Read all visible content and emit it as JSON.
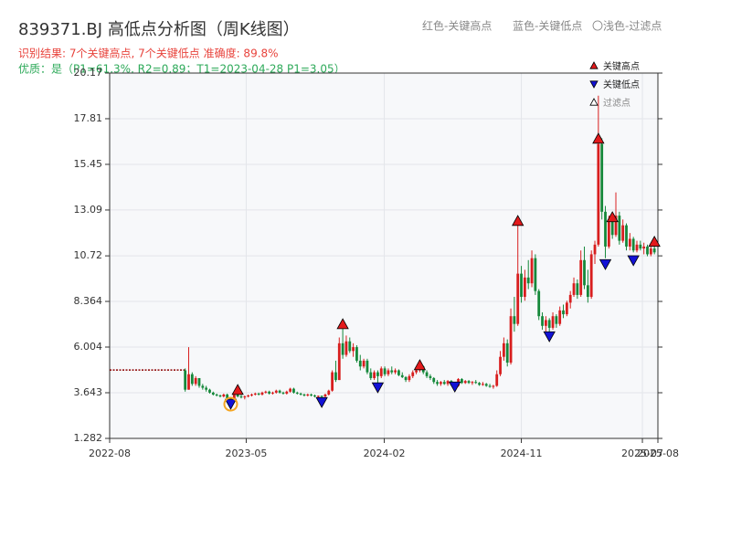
{
  "chart_data": {
    "type": "candlestick",
    "title": "839371.BJ 高低点分析图（周K线图）",
    "header_notes": [
      "红色-关键高点",
      "蓝色-关键低点",
      "〇浅色-过滤点"
    ],
    "result_text": "识别结果: 7个关键高点, 7个关键低点  准确度: 89.8%",
    "quality_text": "优质：是（P1=61.3%, R2=0.89；T1=2023-04-28 P1=3.05）",
    "up_color": "#d81e1e",
    "down_color": "#15883a",
    "xlim": [
      "2022-08",
      "2025-08"
    ],
    "xticks": [
      "2022-08",
      "2023-05",
      "2024-02",
      "2024-11",
      "2025-07",
      "2025-08"
    ],
    "ylim": [
      1.282,
      20.17
    ],
    "yticks": [
      1.282,
      3.643,
      6.004,
      8.364,
      10.72,
      13.09,
      15.45,
      17.81,
      20.17
    ],
    "grid": true,
    "legend_position": "upper right",
    "reference_line": {
      "x": [
        "2022-08-01",
        "2022-12-30"
      ],
      "value": 4.82,
      "color": "#8b0000"
    },
    "candles": [
      [
        "2022-12-30",
        4.8,
        4.9,
        3.7,
        3.8
      ],
      [
        "2023-01-06",
        3.8,
        6.0,
        3.8,
        4.6
      ],
      [
        "2023-01-13",
        4.6,
        4.7,
        4.0,
        4.1
      ],
      [
        "2023-01-20",
        4.1,
        4.5,
        4.0,
        4.4
      ],
      [
        "2023-01-27",
        4.4,
        4.4,
        3.9,
        4.0
      ],
      [
        "2023-02-03",
        4.0,
        4.1,
        3.8,
        3.9
      ],
      [
        "2023-02-10",
        3.9,
        4.0,
        3.7,
        3.8
      ],
      [
        "2023-02-17",
        3.8,
        3.85,
        3.6,
        3.65
      ],
      [
        "2023-02-24",
        3.65,
        3.7,
        3.5,
        3.55
      ],
      [
        "2023-03-03",
        3.55,
        3.6,
        3.45,
        3.5
      ],
      [
        "2023-03-10",
        3.5,
        3.55,
        3.4,
        3.45
      ],
      [
        "2023-03-17",
        3.45,
        3.6,
        3.4,
        3.55
      ],
      [
        "2023-03-24",
        3.55,
        3.6,
        3.3,
        3.35
      ],
      [
        "2023-03-31",
        3.35,
        3.4,
        3.05,
        3.2
      ],
      [
        "2023-04-07",
        3.2,
        3.6,
        3.15,
        3.55
      ],
      [
        "2023-04-14",
        3.55,
        3.7,
        3.4,
        3.45
      ],
      [
        "2023-04-21",
        3.45,
        3.55,
        3.35,
        3.4
      ],
      [
        "2023-04-28",
        3.4,
        3.5,
        3.3,
        3.45
      ],
      [
        "2023-05-05",
        3.45,
        3.55,
        3.4,
        3.5
      ],
      [
        "2023-05-12",
        3.5,
        3.6,
        3.45,
        3.55
      ],
      [
        "2023-05-19",
        3.55,
        3.65,
        3.5,
        3.6
      ],
      [
        "2023-05-26",
        3.6,
        3.65,
        3.5,
        3.55
      ],
      [
        "2023-06-02",
        3.55,
        3.7,
        3.5,
        3.65
      ],
      [
        "2023-06-09",
        3.65,
        3.75,
        3.6,
        3.7
      ],
      [
        "2023-06-16",
        3.7,
        3.75,
        3.55,
        3.6
      ],
      [
        "2023-06-23",
        3.6,
        3.7,
        3.55,
        3.65
      ],
      [
        "2023-06-30",
        3.65,
        3.8,
        3.6,
        3.75
      ],
      [
        "2023-07-07",
        3.75,
        3.8,
        3.6,
        3.65
      ],
      [
        "2023-07-14",
        3.65,
        3.7,
        3.55,
        3.6
      ],
      [
        "2023-07-21",
        3.6,
        3.75,
        3.55,
        3.7
      ],
      [
        "2023-07-28",
        3.7,
        3.9,
        3.65,
        3.85
      ],
      [
        "2023-08-04",
        3.85,
        3.9,
        3.6,
        3.65
      ],
      [
        "2023-08-11",
        3.65,
        3.7,
        3.55,
        3.6
      ],
      [
        "2023-08-18",
        3.6,
        3.65,
        3.5,
        3.55
      ],
      [
        "2023-08-25",
        3.55,
        3.6,
        3.45,
        3.5
      ],
      [
        "2023-09-01",
        3.5,
        3.6,
        3.45,
        3.55
      ],
      [
        "2023-09-08",
        3.55,
        3.6,
        3.45,
        3.5
      ],
      [
        "2023-09-15",
        3.5,
        3.55,
        3.4,
        3.45
      ],
      [
        "2023-09-22",
        3.45,
        3.5,
        3.4,
        3.48
      ],
      [
        "2023-09-29",
        3.48,
        3.5,
        3.3,
        3.45
      ],
      [
        "2023-10-06",
        3.45,
        3.6,
        3.4,
        3.55
      ],
      [
        "2023-10-13",
        3.55,
        3.8,
        3.5,
        3.75
      ],
      [
        "2023-10-20",
        3.75,
        4.8,
        3.7,
        4.7
      ],
      [
        "2023-10-27",
        4.7,
        5.3,
        4.2,
        4.3
      ],
      [
        "2023-11-03",
        4.3,
        6.5,
        4.3,
        6.2
      ],
      [
        "2023-11-10",
        6.2,
        7.1,
        5.4,
        5.6
      ],
      [
        "2023-11-17",
        5.6,
        6.6,
        5.5,
        6.3
      ],
      [
        "2023-11-24",
        6.3,
        6.5,
        5.7,
        5.8
      ],
      [
        "2023-12-01",
        5.8,
        6.2,
        5.5,
        6.0
      ],
      [
        "2023-12-08",
        6.0,
        6.1,
        5.2,
        5.3
      ],
      [
        "2023-12-15",
        5.3,
        5.6,
        4.8,
        5.0
      ],
      [
        "2023-12-22",
        5.0,
        5.4,
        4.9,
        5.3
      ],
      [
        "2023-12-29",
        5.3,
        5.4,
        4.6,
        4.7
      ],
      [
        "2024-01-05",
        4.7,
        4.9,
        4.3,
        4.4
      ],
      [
        "2024-01-12",
        4.4,
        4.8,
        4.3,
        4.7
      ],
      [
        "2024-01-19",
        4.7,
        4.8,
        4.1,
        4.5
      ],
      [
        "2024-01-26",
        4.5,
        5.0,
        4.4,
        4.9
      ],
      [
        "2024-02-02",
        4.9,
        5.0,
        4.5,
        4.6
      ],
      [
        "2024-02-09",
        4.6,
        4.9,
        4.5,
        4.8
      ],
      [
        "2024-02-16",
        4.8,
        5.0,
        4.6,
        4.7
      ],
      [
        "2024-02-23",
        4.7,
        4.9,
        4.6,
        4.8
      ],
      [
        "2024-03-01",
        4.8,
        4.85,
        4.5,
        4.55
      ],
      [
        "2024-03-08",
        4.55,
        4.7,
        4.4,
        4.45
      ],
      [
        "2024-03-15",
        4.45,
        4.5,
        4.2,
        4.3
      ],
      [
        "2024-03-22",
        4.3,
        4.6,
        4.2,
        4.5
      ],
      [
        "2024-03-29",
        4.5,
        4.8,
        4.4,
        4.7
      ],
      [
        "2024-04-05",
        4.7,
        4.9,
        4.6,
        4.8
      ],
      [
        "2024-04-12",
        4.8,
        5.2,
        4.7,
        5.0
      ],
      [
        "2024-04-19",
        5.0,
        5.05,
        4.6,
        4.7
      ],
      [
        "2024-04-26",
        4.7,
        4.8,
        4.4,
        4.5
      ],
      [
        "2024-05-03",
        4.5,
        4.6,
        4.3,
        4.4
      ],
      [
        "2024-05-10",
        4.4,
        4.45,
        4.1,
        4.2
      ],
      [
        "2024-05-17",
        4.2,
        4.3,
        4.0,
        4.1
      ],
      [
        "2024-05-24",
        4.1,
        4.25,
        4.0,
        4.2
      ],
      [
        "2024-05-31",
        4.2,
        4.3,
        4.05,
        4.1
      ],
      [
        "2024-06-07",
        4.1,
        4.3,
        4.0,
        4.25
      ],
      [
        "2024-06-14",
        4.25,
        4.3,
        4.0,
        4.05
      ],
      [
        "2024-06-21",
        4.05,
        4.1,
        3.9,
        4.0
      ],
      [
        "2024-06-28",
        4.0,
        4.4,
        3.95,
        4.35
      ],
      [
        "2024-07-05",
        4.35,
        4.4,
        4.1,
        4.15
      ],
      [
        "2024-07-12",
        4.15,
        4.3,
        4.1,
        4.25
      ],
      [
        "2024-07-19",
        4.25,
        4.3,
        4.1,
        4.15
      ],
      [
        "2024-07-26",
        4.15,
        4.25,
        4.05,
        4.2
      ],
      [
        "2024-08-02",
        4.2,
        4.3,
        4.1,
        4.15
      ],
      [
        "2024-08-09",
        4.15,
        4.2,
        4.0,
        4.05
      ],
      [
        "2024-08-16",
        4.05,
        4.2,
        4.0,
        4.1
      ],
      [
        "2024-08-23",
        4.1,
        4.15,
        3.95,
        4.0
      ],
      [
        "2024-08-30",
        4.0,
        4.1,
        3.9,
        3.95
      ],
      [
        "2024-09-06",
        3.95,
        4.05,
        3.85,
        4.0
      ],
      [
        "2024-09-13",
        4.0,
        4.8,
        3.95,
        4.6
      ],
      [
        "2024-09-20",
        4.6,
        5.8,
        4.5,
        5.5
      ],
      [
        "2024-09-27",
        5.5,
        6.5,
        5.3,
        6.2
      ],
      [
        "2024-10-04",
        6.2,
        6.4,
        5.0,
        5.2
      ],
      [
        "2024-10-11",
        5.2,
        8.0,
        5.1,
        7.6
      ],
      [
        "2024-10-18",
        7.6,
        8.6,
        6.8,
        7.2
      ],
      [
        "2024-10-25",
        7.2,
        12.4,
        7.1,
        9.8
      ],
      [
        "2024-11-01",
        9.8,
        10.2,
        8.3,
        8.6
      ],
      [
        "2024-11-08",
        8.6,
        10.0,
        8.4,
        9.6
      ],
      [
        "2024-11-15",
        9.6,
        10.5,
        9.0,
        9.3
      ],
      [
        "2024-11-22",
        9.3,
        11.0,
        9.1,
        10.6
      ],
      [
        "2024-11-29",
        10.6,
        10.8,
        8.7,
        8.9
      ],
      [
        "2024-12-06",
        8.9,
        9.0,
        7.4,
        7.6
      ],
      [
        "2024-12-13",
        7.6,
        7.8,
        6.9,
        7.1
      ],
      [
        "2024-12-20",
        7.1,
        7.6,
        6.8,
        7.4
      ],
      [
        "2024-12-27",
        7.4,
        7.5,
        6.8,
        7.0
      ],
      [
        "2025-01-03",
        7.0,
        7.8,
        6.9,
        7.6
      ],
      [
        "2025-01-10",
        7.6,
        7.7,
        7.0,
        7.2
      ],
      [
        "2025-01-17",
        7.2,
        8.1,
        7.1,
        7.9
      ],
      [
        "2025-01-24",
        7.9,
        8.2,
        7.5,
        7.7
      ],
      [
        "2025-01-31",
        7.7,
        8.4,
        7.6,
        8.3
      ],
      [
        "2025-02-07",
        8.3,
        8.9,
        8.0,
        8.7
      ],
      [
        "2025-02-14",
        8.7,
        9.6,
        8.6,
        9.3
      ],
      [
        "2025-02-21",
        9.3,
        9.5,
        8.5,
        8.7
      ],
      [
        "2025-02-28",
        8.7,
        11.0,
        8.6,
        10.5
      ],
      [
        "2025-03-07",
        10.5,
        11.2,
        9.0,
        9.2
      ],
      [
        "2025-03-14",
        9.2,
        10.0,
        8.3,
        8.6
      ],
      [
        "2025-03-21",
        8.6,
        11.0,
        8.5,
        10.8
      ],
      [
        "2025-03-28",
        10.8,
        11.5,
        10.3,
        11.3
      ],
      [
        "2025-04-04",
        11.3,
        19.0,
        11.2,
        16.5
      ],
      [
        "2025-04-11",
        16.5,
        16.8,
        12.6,
        13.0
      ],
      [
        "2025-04-18",
        13.0,
        13.3,
        10.6,
        11.2
      ],
      [
        "2025-04-25",
        11.2,
        12.8,
        11.1,
        12.5
      ],
      [
        "2025-05-02",
        12.5,
        12.6,
        11.6,
        11.8
      ],
      [
        "2025-05-09",
        11.8,
        14.0,
        11.7,
        12.8
      ],
      [
        "2025-05-16",
        12.8,
        13.0,
        11.3,
        11.5
      ],
      [
        "2025-05-23",
        11.5,
        12.6,
        11.4,
        12.3
      ],
      [
        "2025-05-30",
        12.3,
        12.4,
        11.0,
        11.2
      ],
      [
        "2025-06-06",
        11.2,
        11.9,
        11.0,
        11.6
      ],
      [
        "2025-06-13",
        11.6,
        11.7,
        10.9,
        11.0
      ],
      [
        "2025-06-20",
        11.0,
        11.5,
        10.9,
        11.3
      ],
      [
        "2025-06-27",
        11.3,
        11.5,
        11.0,
        11.1
      ],
      [
        "2025-07-04",
        11.1,
        11.4,
        10.8,
        11.2
      ],
      [
        "2025-07-11",
        11.2,
        11.3,
        10.7,
        10.8
      ],
      [
        "2025-07-18",
        10.8,
        11.2,
        10.7,
        11.1
      ],
      [
        "2025-07-25",
        11.1,
        11.2,
        10.8,
        10.9
      ]
    ],
    "markers": [
      {
        "name": "关键高点",
        "shape": "up",
        "color": "#e31a1c",
        "x": [
          "2023-04-14",
          "2023-11-10",
          "2024-04-12",
          "2024-10-25",
          "2025-04-04",
          "2025-05-02",
          "2025-07-25"
        ],
        "values": [
          3.78,
          7.18,
          5.06,
          12.52,
          16.77,
          12.71,
          11.44
        ]
      },
      {
        "name": "关键低点",
        "shape": "down",
        "color": "#1212d6",
        "x": [
          "2023-03-31",
          "2023-09-29",
          "2024-01-19",
          "2024-06-21",
          "2024-12-27",
          "2025-04-18",
          "2025-06-13"
        ],
        "values": [
          3.08,
          3.17,
          3.93,
          3.97,
          6.57,
          10.3,
          10.5
        ]
      },
      {
        "name": "过滤点",
        "shape": "circle",
        "color": "#f5a623",
        "x": [
          "2023-03-31"
        ],
        "values": [
          3.05
        ]
      }
    ]
  }
}
